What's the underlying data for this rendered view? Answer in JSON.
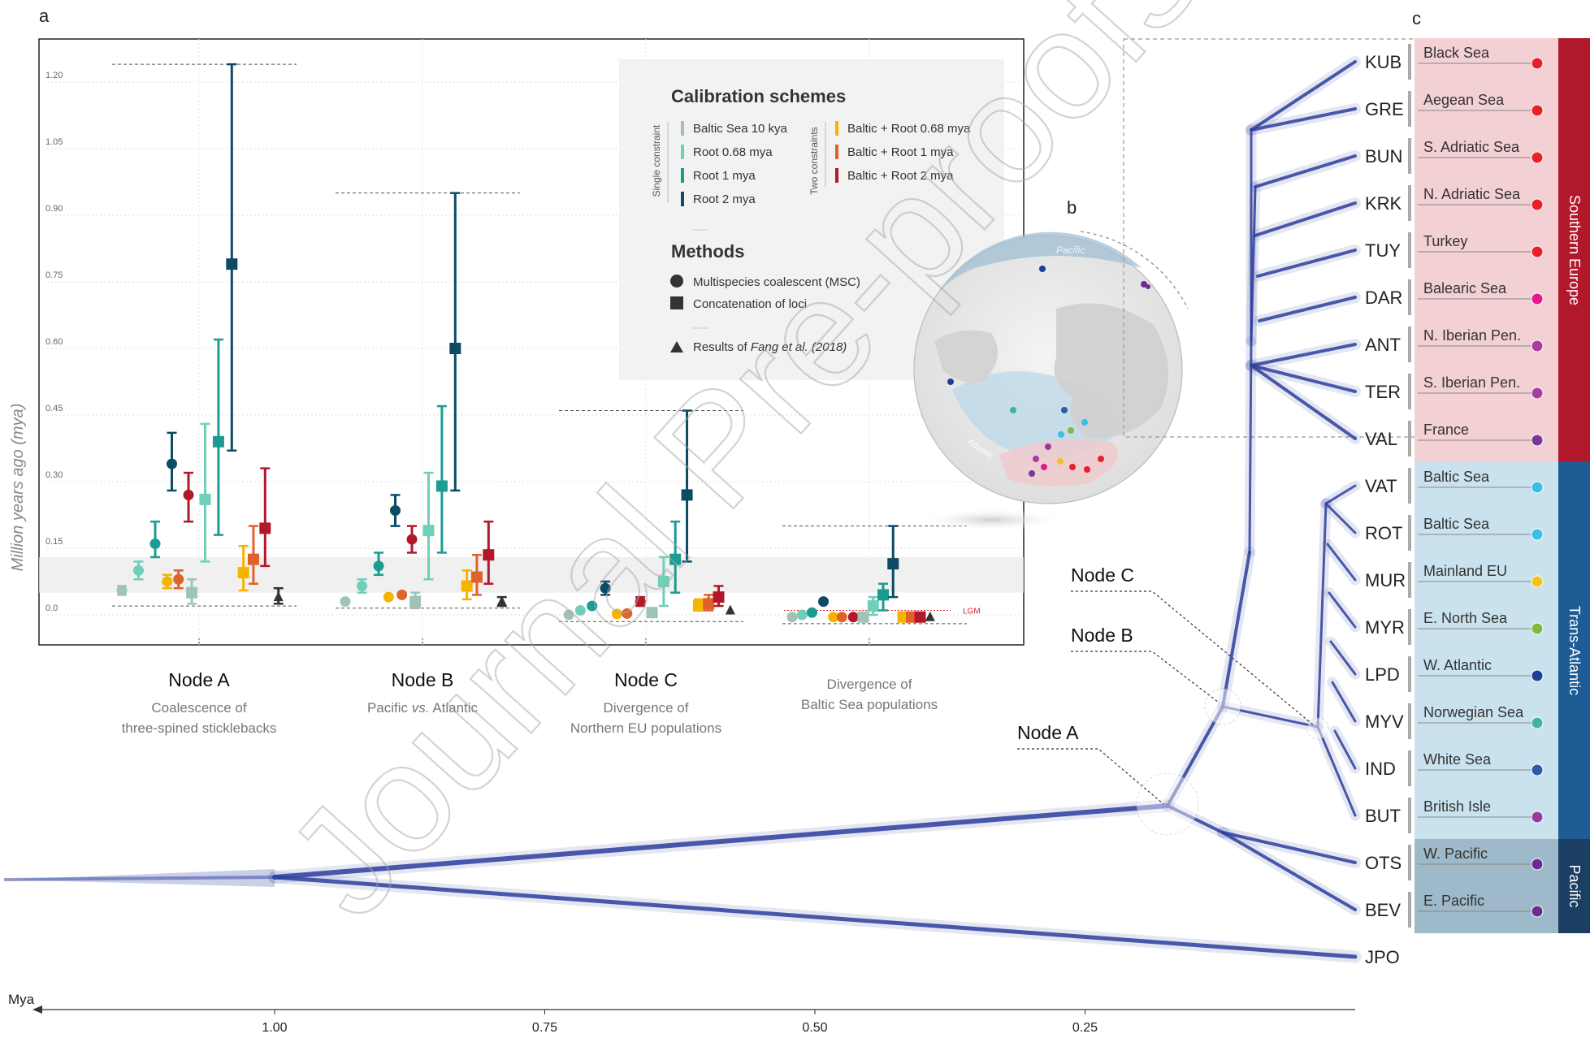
{
  "panel_labels": {
    "a": "a",
    "b": "b",
    "c": "c"
  },
  "watermark": "Journal Pre-proofs",
  "colors": {
    "baltic10kya": "#9fc3b6",
    "root068": "#6fcfb8",
    "root1": "#1b9c93",
    "root2": "#0c4b64",
    "baltic_root068": "#f5b400",
    "baltic_root1": "#e0622b",
    "baltic_root2": "#b2182b",
    "fang": "#333333",
    "tree": "#2e3f9e",
    "southern_bg": "#f2d0d3",
    "southern_band": "#b2182b",
    "trans_bg": "#c9e2ee",
    "trans_band": "#1f5c95",
    "pacific_bg": "#9eb9c9",
    "pacific_band": "#1a3f63"
  },
  "chart_data": [
    {
      "type": "scatter",
      "panel": "a",
      "ylabel": "Million years ago (mya)",
      "ylim": [
        -0.07,
        1.35
      ],
      "yticks": [
        "0.0",
        "0.15",
        "0.30",
        "0.45",
        "0.60",
        "0.75",
        "0.90",
        "1.05",
        "1.20"
      ],
      "ytick_values": [
        0.0,
        0.15,
        0.3,
        0.45,
        0.6,
        0.75,
        0.9,
        1.05,
        1.2
      ],
      "grid": true,
      "groups": [
        {
          "title": "Node A",
          "subtitle": "Coalescence of",
          "subtitle2": "three-spined sticklebacks",
          "range_top": 1.24,
          "range_bottom": 0.02
        },
        {
          "title": "Node B",
          "subtitle": "Pacific vs. Atlantic",
          "subtitle2": "",
          "range_top": 0.95,
          "range_bottom": 0.015
        },
        {
          "title": "Node C",
          "subtitle": "Divergence of",
          "subtitle2": "Northern EU populations",
          "range_top": 0.46,
          "range_bottom": -0.015
        },
        {
          "title": "",
          "subtitle": "Divergence of",
          "subtitle2": "Baltic Sea populations",
          "range_top": 0.2,
          "range_bottom": -0.02
        }
      ],
      "lgm_label": "LGM",
      "lgm_value": 0.01,
      "band": [
        0.05,
        0.13
      ],
      "series": [
        {
          "name": "Baltic Sea 10 kya",
          "color_key": "baltic10kya",
          "constraint": "single"
        },
        {
          "name": "Root 0.68 mya",
          "color_key": "root068",
          "constraint": "single"
        },
        {
          "name": "Root 1 mya",
          "color_key": "root1",
          "constraint": "single"
        },
        {
          "name": "Root 2 mya",
          "color_key": "root2",
          "constraint": "single"
        },
        {
          "name": "Baltic + Root 0.68 mya",
          "color_key": "baltic_root068",
          "constraint": "two"
        },
        {
          "name": "Baltic + Root 1 mya",
          "color_key": "baltic_root1",
          "constraint": "two"
        },
        {
          "name": "Baltic + Root 2 mya",
          "color_key": "baltic_root2",
          "constraint": "two"
        }
      ],
      "points": [
        {
          "group": 0,
          "series": "Baltic Sea 10 kya",
          "method": "MSC",
          "y": 0.055,
          "lo": 0.045,
          "hi": 0.065
        },
        {
          "group": 0,
          "series": "Root 0.68 mya",
          "method": "MSC",
          "y": 0.1,
          "lo": 0.08,
          "hi": 0.12
        },
        {
          "group": 0,
          "series": "Root 1 mya",
          "method": "MSC",
          "y": 0.16,
          "lo": 0.13,
          "hi": 0.21
        },
        {
          "group": 0,
          "series": "Root 2 mya",
          "method": "MSC",
          "y": 0.34,
          "lo": 0.28,
          "hi": 0.41
        },
        {
          "group": 0,
          "series": "Baltic + Root 0.68 mya",
          "method": "MSC",
          "y": 0.075,
          "lo": 0.06,
          "hi": 0.09
        },
        {
          "group": 0,
          "series": "Baltic + Root 1 mya",
          "method": "MSC",
          "y": 0.08,
          "lo": 0.06,
          "hi": 0.1
        },
        {
          "group": 0,
          "series": "Baltic + Root 2 mya",
          "method": "MSC",
          "y": 0.27,
          "lo": 0.21,
          "hi": 0.32
        },
        {
          "group": 0,
          "series": "Baltic Sea 10 kya",
          "method": "Concatenation",
          "y": 0.05,
          "lo": 0.025,
          "hi": 0.08
        },
        {
          "group": 0,
          "series": "Root 0.68 mya",
          "method": "Concatenation",
          "y": 0.26,
          "lo": 0.12,
          "hi": 0.43
        },
        {
          "group": 0,
          "series": "Root 1 mya",
          "method": "Concatenation",
          "y": 0.39,
          "lo": 0.18,
          "hi": 0.62
        },
        {
          "group": 0,
          "series": "Root 2 mya",
          "method": "Concatenation",
          "y": 0.79,
          "lo": 0.37,
          "hi": 1.24
        },
        {
          "group": 0,
          "series": "Baltic + Root 0.68 mya",
          "method": "Concatenation",
          "y": 0.095,
          "lo": 0.055,
          "hi": 0.155
        },
        {
          "group": 0,
          "series": "Baltic + Root 1 mya",
          "method": "Concatenation",
          "y": 0.125,
          "lo": 0.07,
          "hi": 0.2
        },
        {
          "group": 0,
          "series": "Baltic + Root 2 mya",
          "method": "Concatenation",
          "y": 0.195,
          "lo": 0.11,
          "hi": 0.33
        },
        {
          "group": 0,
          "series": "Fang et al. (2018)",
          "method": "Fang",
          "y": 0.04,
          "lo": 0.025,
          "hi": 0.06
        },
        {
          "group": 1,
          "series": "Baltic Sea 10 kya",
          "method": "MSC",
          "y": 0.03,
          "lo": 0.025,
          "hi": 0.035
        },
        {
          "group": 1,
          "series": "Root 0.68 mya",
          "method": "MSC",
          "y": 0.065,
          "lo": 0.05,
          "hi": 0.08
        },
        {
          "group": 1,
          "series": "Root 1 mya",
          "method": "MSC",
          "y": 0.11,
          "lo": 0.09,
          "hi": 0.14
        },
        {
          "group": 1,
          "series": "Root 2 mya",
          "method": "MSC",
          "y": 0.235,
          "lo": 0.2,
          "hi": 0.27
        },
        {
          "group": 1,
          "series": "Baltic + Root 0.68 mya",
          "method": "MSC",
          "y": 0.04,
          "lo": 0.035,
          "hi": 0.045
        },
        {
          "group": 1,
          "series": "Baltic + Root 1 mya",
          "method": "MSC",
          "y": 0.045,
          "lo": 0.04,
          "hi": 0.05
        },
        {
          "group": 1,
          "series": "Baltic + Root 2 mya",
          "method": "MSC",
          "y": 0.17,
          "lo": 0.14,
          "hi": 0.2
        },
        {
          "group": 1,
          "series": "Baltic Sea 10 kya",
          "method": "Concatenation",
          "y": 0.03,
          "lo": 0.015,
          "hi": 0.05
        },
        {
          "group": 1,
          "series": "Root 0.68 mya",
          "method": "Concatenation",
          "y": 0.19,
          "lo": 0.08,
          "hi": 0.32
        },
        {
          "group": 1,
          "series": "Root 1 mya",
          "method": "Concatenation",
          "y": 0.29,
          "lo": 0.14,
          "hi": 0.47
        },
        {
          "group": 1,
          "series": "Root 2 mya",
          "method": "Concatenation",
          "y": 0.6,
          "lo": 0.28,
          "hi": 0.95
        },
        {
          "group": 1,
          "series": "Baltic + Root 0.68 mya",
          "method": "Concatenation",
          "y": 0.065,
          "lo": 0.035,
          "hi": 0.1
        },
        {
          "group": 1,
          "series": "Baltic + Root 1 mya",
          "method": "Concatenation",
          "y": 0.085,
          "lo": 0.045,
          "hi": 0.135
        },
        {
          "group": 1,
          "series": "Baltic + Root 2 mya",
          "method": "Concatenation",
          "y": 0.135,
          "lo": 0.07,
          "hi": 0.21
        },
        {
          "group": 1,
          "series": "Fang et al. (2018)",
          "method": "Fang",
          "y": 0.03,
          "lo": 0.02,
          "hi": 0.04
        },
        {
          "group": 2,
          "series": "Baltic Sea 10 kya",
          "method": "MSC",
          "y": 0.0,
          "lo": -0.002,
          "hi": 0.002
        },
        {
          "group": 2,
          "series": "Root 0.68 mya",
          "method": "MSC",
          "y": 0.01,
          "lo": 0.007,
          "hi": 0.013
        },
        {
          "group": 2,
          "series": "Root 1 mya",
          "method": "MSC",
          "y": 0.02,
          "lo": 0.016,
          "hi": 0.024
        },
        {
          "group": 2,
          "series": "Root 2 mya",
          "method": "MSC",
          "y": 0.06,
          "lo": 0.045,
          "hi": 0.075
        },
        {
          "group": 2,
          "series": "Baltic + Root 0.68 mya",
          "method": "MSC",
          "y": 0.002,
          "lo": 0.0,
          "hi": 0.004
        },
        {
          "group": 2,
          "series": "Baltic + Root 1 mya",
          "method": "MSC",
          "y": 0.003,
          "lo": 0.001,
          "hi": 0.005
        },
        {
          "group": 2,
          "series": "Baltic + Root 2 mya",
          "method": "MSC",
          "y": 0.03,
          "lo": 0.02,
          "hi": 0.04
        },
        {
          "group": 2,
          "series": "Baltic Sea 10 kya",
          "method": "Concatenation",
          "y": 0.005,
          "lo": 0.0,
          "hi": 0.01
        },
        {
          "group": 2,
          "series": "Root 0.68 mya",
          "method": "Concatenation",
          "y": 0.075,
          "lo": 0.02,
          "hi": 0.13
        },
        {
          "group": 2,
          "series": "Root 1 mya",
          "method": "Concatenation",
          "y": 0.125,
          "lo": 0.05,
          "hi": 0.21
        },
        {
          "group": 2,
          "series": "Root 2 mya",
          "method": "Concatenation",
          "y": 0.27,
          "lo": 0.12,
          "hi": 0.46
        },
        {
          "group": 2,
          "series": "Baltic + Root 0.68 mya",
          "method": "Concatenation",
          "y": 0.02,
          "lo": 0.01,
          "hi": 0.035
        },
        {
          "group": 2,
          "series": "Baltic + Root 1 mya",
          "method": "Concatenation",
          "y": 0.025,
          "lo": 0.01,
          "hi": 0.045
        },
        {
          "group": 2,
          "series": "Baltic + Root 2 mya",
          "method": "Concatenation",
          "y": 0.04,
          "lo": 0.02,
          "hi": 0.065
        },
        {
          "group": 2,
          "series": "Fang et al. (2018)",
          "method": "Fang",
          "y": 0.01,
          "lo": 0.005,
          "hi": 0.015
        },
        {
          "group": 3,
          "series": "Baltic Sea 10 kya",
          "method": "MSC",
          "y": -0.005,
          "lo": -0.007,
          "hi": -0.003
        },
        {
          "group": 3,
          "series": "Root 0.68 mya",
          "method": "MSC",
          "y": 0.0,
          "lo": -0.002,
          "hi": 0.002
        },
        {
          "group": 3,
          "series": "Root 1 mya",
          "method": "MSC",
          "y": 0.005,
          "lo": 0.003,
          "hi": 0.007
        },
        {
          "group": 3,
          "series": "Root 2 mya",
          "method": "MSC",
          "y": 0.03,
          "lo": 0.025,
          "hi": 0.035
        },
        {
          "group": 3,
          "series": "Baltic + Root 0.68 mya",
          "method": "MSC",
          "y": -0.005,
          "lo": -0.007,
          "hi": -0.003
        },
        {
          "group": 3,
          "series": "Baltic + Root 1 mya",
          "method": "MSC",
          "y": -0.005,
          "lo": -0.007,
          "hi": -0.003
        },
        {
          "group": 3,
          "series": "Baltic + Root 2 mya",
          "method": "MSC",
          "y": -0.005,
          "lo": -0.007,
          "hi": -0.003
        },
        {
          "group": 3,
          "series": "Baltic Sea 10 kya",
          "method": "Concatenation",
          "y": -0.005,
          "lo": -0.01,
          "hi": 0.0
        },
        {
          "group": 3,
          "series": "Root 0.68 mya",
          "method": "Concatenation",
          "y": 0.02,
          "lo": 0.0,
          "hi": 0.04
        },
        {
          "group": 3,
          "series": "Root 1 mya",
          "method": "Concatenation",
          "y": 0.045,
          "lo": 0.01,
          "hi": 0.07
        },
        {
          "group": 3,
          "series": "Root 2 mya",
          "method": "Concatenation",
          "y": 0.115,
          "lo": 0.04,
          "hi": 0.2
        },
        {
          "group": 3,
          "series": "Baltic + Root 0.68 mya",
          "method": "Concatenation",
          "y": -0.005,
          "lo": -0.007,
          "hi": -0.003
        },
        {
          "group": 3,
          "series": "Baltic + Root 1 mya",
          "method": "Concatenation",
          "y": -0.005,
          "lo": -0.007,
          "hi": -0.003
        },
        {
          "group": 3,
          "series": "Baltic + Root 2 mya",
          "method": "Concatenation",
          "y": -0.005,
          "lo": -0.007,
          "hi": -0.003
        },
        {
          "group": 3,
          "series": "Fang et al. (2018)",
          "method": "Fang",
          "y": -0.005,
          "lo": -0.007,
          "hi": -0.003
        }
      ],
      "legend": {
        "title": "Calibration schemes",
        "single_label": "Single constraint",
        "two_label": "Two constraints",
        "single": [
          "Baltic Sea 10 kya",
          "Root 0.68 mya",
          "Root 1 mya",
          "Root 2 mya"
        ],
        "two": [
          "Baltic + Root 0.68 mya",
          "Baltic + Root 1 mya",
          "Baltic + Root 2 mya"
        ],
        "methods_title": "Methods",
        "msc": "Multispecies coalescent (MSC)",
        "concat": "Concatenation of loci",
        "fang_prefix": "Results of ",
        "fang_italic": "Fang et al. (2018)",
        "placement": "top-right"
      }
    },
    {
      "type": "tree",
      "panel": "c",
      "xlabel": "Mya",
      "xlim": [
        1.25,
        0.0
      ],
      "xticks": [
        "1.00",
        "0.75",
        "0.50",
        "0.25"
      ],
      "xtick_values": [
        1.0,
        0.75,
        0.5,
        0.25
      ],
      "nodes": [
        {
          "label": "Node A",
          "age": 0.12
        },
        {
          "label": "Node B",
          "age": 0.12
        },
        {
          "label": "Node C",
          "age": 0.04
        }
      ],
      "tips": [
        {
          "code": "KUB",
          "region": "Black Sea",
          "dot": "#e8202a",
          "group": "Southern Europe"
        },
        {
          "code": "GRE",
          "region": "Aegean Sea",
          "dot": "#e8202a",
          "group": "Southern Europe"
        },
        {
          "code": "BUN",
          "region": "S. Adriatic Sea",
          "dot": "#e8202a",
          "group": "Southern Europe"
        },
        {
          "code": "KRK",
          "region": "N. Adriatic Sea",
          "dot": "#e8202a",
          "group": "Southern Europe"
        },
        {
          "code": "TUY",
          "region": "Turkey",
          "dot": "#e8202a",
          "group": "Southern Europe"
        },
        {
          "code": "DAR",
          "region": "Balearic Sea",
          "dot": "#e2188c",
          "group": "Southern Europe"
        },
        {
          "code": "ANT",
          "region": "N. Iberian Pen.",
          "dot": "#a93aa5",
          "group": "Southern Europe"
        },
        {
          "code": "TER",
          "region": "S. Iberian Pen.",
          "dot": "#a93aa5",
          "group": "Southern Europe"
        },
        {
          "code": "VAL",
          "region": "France",
          "dot": "#7a3597",
          "group": "Southern Europe"
        },
        {
          "code": "VAT",
          "region": "Baltic Sea",
          "dot": "#3cbde6",
          "group": "Trans-Atlantic"
        },
        {
          "code": "ROT",
          "region": "Baltic Sea",
          "dot": "#3cbde6",
          "group": "Trans-Atlantic"
        },
        {
          "code": "MUR",
          "region": "Mainland EU",
          "dot": "#f5c21b",
          "group": "Trans-Atlantic"
        },
        {
          "code": "MYR",
          "region": "E. North Sea",
          "dot": "#7dbb42",
          "group": "Trans-Atlantic"
        },
        {
          "code": "LPD",
          "region": "W. Atlantic",
          "dot": "#1c3f94",
          "group": "Trans-Atlantic"
        },
        {
          "code": "MYV",
          "region": "Norwegian Sea",
          "dot": "#3fb59b",
          "group": "Trans-Atlantic"
        },
        {
          "code": "IND",
          "region": "White Sea",
          "dot": "#2e5aa8",
          "group": "Trans-Atlantic"
        },
        {
          "code": "BUT",
          "region": "British Isle",
          "dot": "#9b3a9d",
          "group": "Trans-Atlantic"
        },
        {
          "code": "OTS",
          "region": "W. Pacific",
          "dot": "#6a2c91",
          "group": "Pacific"
        },
        {
          "code": "BEV",
          "region": "E. Pacific",
          "dot": "#6a2c91",
          "group": "Pacific"
        },
        {
          "code": "JPO",
          "region": "",
          "dot": "",
          "group": ""
        }
      ],
      "bands": [
        {
          "label": "Southern Europe"
        },
        {
          "label": "Trans-Atlantic"
        },
        {
          "label": "Pacific"
        }
      ]
    }
  ],
  "map": {
    "pacific_label": "Pacific",
    "atlantic_label": "Atlantic"
  }
}
